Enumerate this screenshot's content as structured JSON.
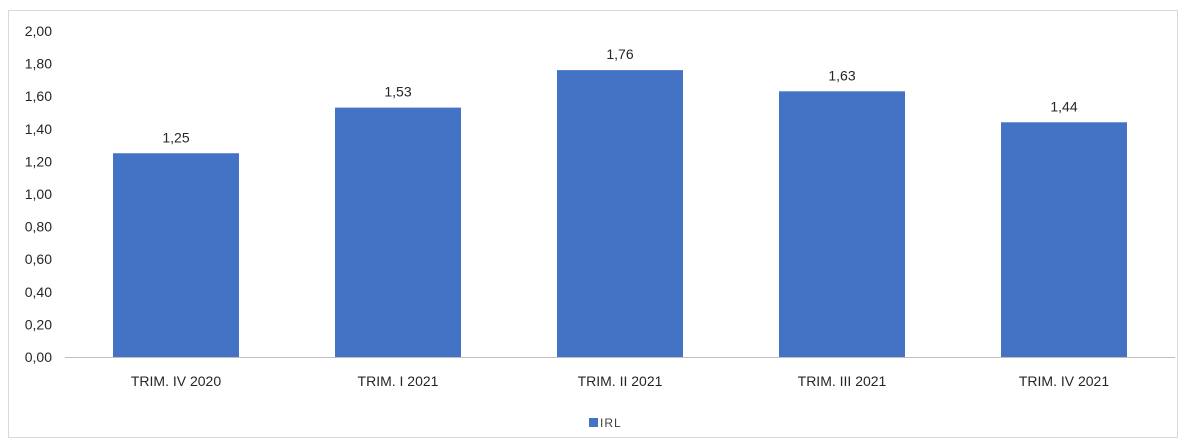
{
  "chart_data": {
    "type": "bar",
    "categories": [
      "TRIM. IV 2020",
      "TRIM. I 2021",
      "TRIM. II 2021",
      "TRIM. III 2021",
      "TRIM. IV 2021"
    ],
    "series": [
      {
        "name": "IRL",
        "values": [
          1.25,
          1.53,
          1.76,
          1.63,
          1.44
        ],
        "color": "#4472c4"
      }
    ],
    "data_labels": [
      "1,25",
      "1,53",
      "1,76",
      "1,63",
      "1,44"
    ],
    "y_ticks": [
      "0,00",
      "0,20",
      "0,40",
      "0,60",
      "0,80",
      "1,00",
      "1,20",
      "1,40",
      "1,60",
      "1,80",
      "2,00"
    ],
    "ylim": [
      0,
      2
    ],
    "title": "",
    "xlabel": "",
    "ylabel": "",
    "grid": false,
    "legend": {
      "position": "bottom",
      "entries": [
        "IRL"
      ]
    }
  }
}
